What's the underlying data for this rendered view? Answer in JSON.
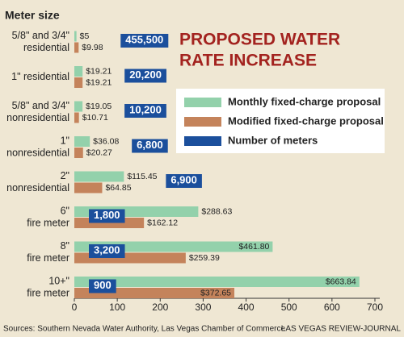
{
  "chart_data": {
    "type": "bar",
    "orientation": "horizontal",
    "title": [
      "PROPOSED WATER",
      "RATE INCREASE"
    ],
    "category_axis_title": "Meter size",
    "categories": [
      [
        "5/8\" and 3/4\"",
        "residential"
      ],
      [
        "1\" residential"
      ],
      [
        "5/8\" and 3/4\"",
        "nonresidential"
      ],
      [
        "1\"",
        "nonresidential"
      ],
      [
        "2\"",
        "nonresidential"
      ],
      [
        "6\"",
        "fire meter"
      ],
      [
        "8\"",
        "fire meter"
      ],
      [
        "10+\"",
        "fire meter"
      ]
    ],
    "series": [
      {
        "name": "Monthly fixed-charge proposal",
        "color": "#93d1ab",
        "values": [
          5,
          19.21,
          19.05,
          36.08,
          115.45,
          288.63,
          461.8,
          663.84
        ],
        "value_labels": [
          "$5",
          "$19.21",
          "$19.05",
          "$36.08",
          "$115.45",
          "$288.63",
          "$461.80",
          "$663.84"
        ]
      },
      {
        "name": "Modified fixed-charge proposal",
        "color": "#c4835b",
        "values": [
          9.98,
          19.21,
          10.71,
          20.27,
          64.85,
          162.12,
          259.39,
          372.65
        ],
        "value_labels": [
          "$9.98",
          "$19.21",
          "$10.71",
          "$20.27",
          "$64.85",
          "$162.12",
          "$259.39",
          "$372.65"
        ]
      }
    ],
    "meters": {
      "name": "Number of meters",
      "color": "#1b4f9c",
      "values": [
        455500,
        20200,
        10200,
        6800,
        6900,
        1800,
        3200,
        900
      ],
      "value_labels": [
        "455,500",
        "20,200",
        "10,200",
        "6,800",
        "6,900",
        "1,800",
        "3,200",
        "900"
      ]
    },
    "xlim": [
      0,
      700
    ],
    "xticks": [
      0,
      100,
      200,
      300,
      400,
      500,
      600,
      700
    ],
    "source": "Sources: Southern Nevada Water Authority, Las Vegas Chamber of Commerce",
    "credit": "LAS VEGAS REVIEW-JOURNAL"
  }
}
